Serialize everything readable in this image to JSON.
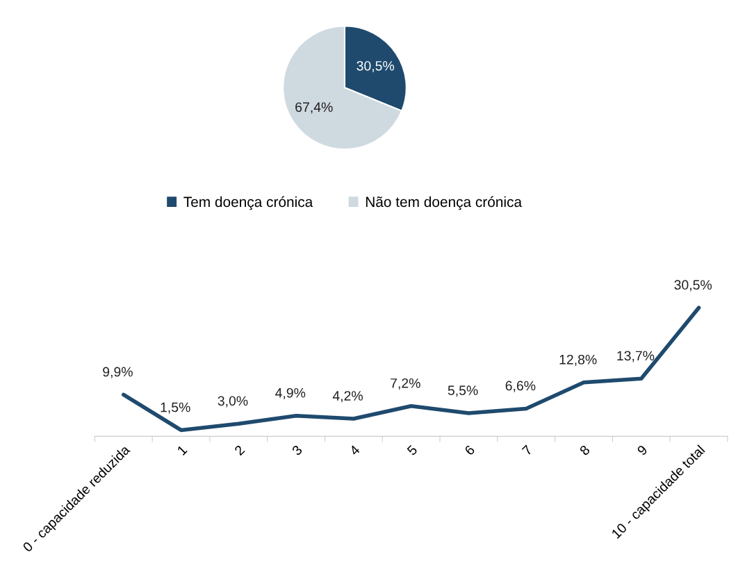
{
  "chart_data": [
    {
      "type": "pie",
      "categories": [
        "Tem doença crónica",
        "Não tem doença crónica"
      ],
      "values": [
        30.5,
        67.4
      ],
      "colors": [
        "#1f4a6e",
        "#cfd9e0"
      ],
      "value_labels": [
        "30,5%",
        "67,4%"
      ],
      "legend": "bottom"
    },
    {
      "type": "line",
      "categories": [
        "0 - capacidade reduzida",
        "1",
        "2",
        "3",
        "4",
        "5",
        "6",
        "7",
        "8",
        "9",
        "10 - capacidade total"
      ],
      "series": [
        {
          "color": "#1f4a6e",
          "values": [
            9.9,
            1.5,
            3.0,
            4.9,
            4.2,
            7.2,
            5.5,
            6.6,
            12.8,
            13.7,
            30.5
          ],
          "value_labels": [
            "9,9%",
            "1,5%",
            "3,0%",
            "4,9%",
            "4,2%",
            "7,2%",
            "5,5%",
            "6,6%",
            "12,8%",
            "13,7%",
            "30,5%"
          ]
        }
      ],
      "tick_labels": "x",
      "marker": "none",
      "line_style": "solid",
      "grid": false,
      "legend": false
    }
  ]
}
